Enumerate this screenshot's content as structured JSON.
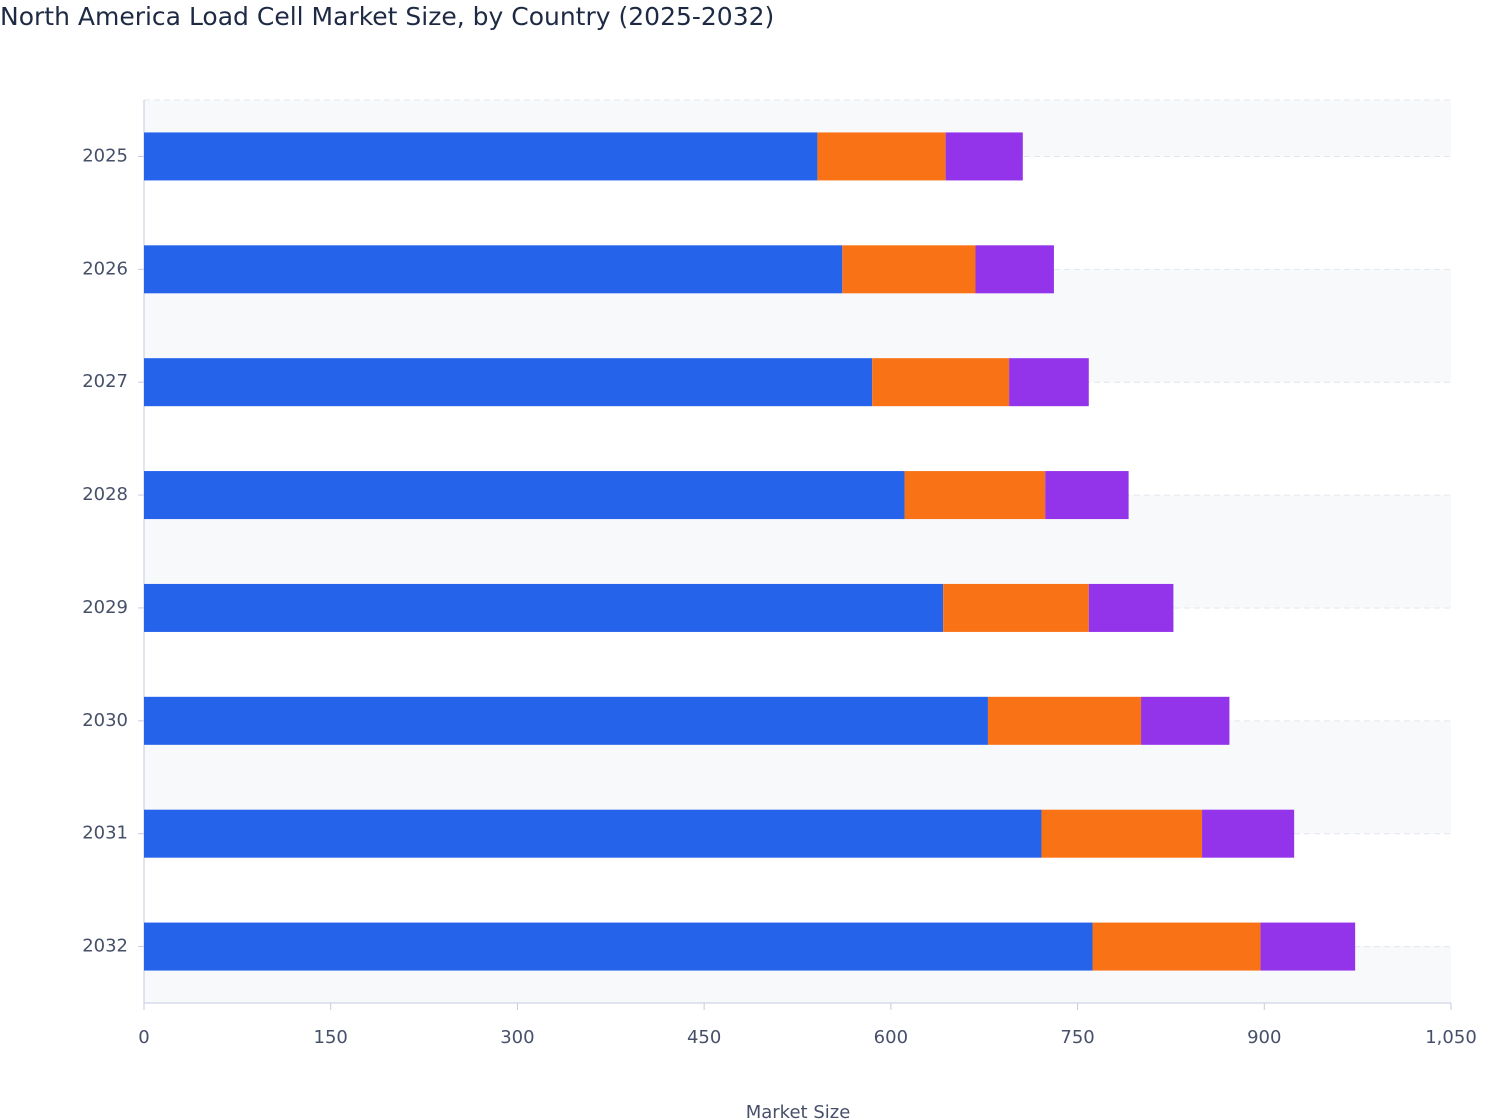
{
  "chart_data": {
    "type": "stacked-barh",
    "title": "North America Load Cell Market Size, by Country (2025-2032)",
    "x_label": "Market Size",
    "categories": [
      "2025",
      "2026",
      "2027",
      "2028",
      "2029",
      "2030",
      "2031",
      "2032"
    ],
    "series": [
      {
        "color": "#2563eb",
        "values": [
          541,
          561,
          585,
          611,
          642,
          678,
          721,
          762
        ]
      },
      {
        "color": "#f97316",
        "values": [
          103,
          107,
          110,
          113,
          117,
          123,
          129,
          135
        ]
      },
      {
        "color": "#9333ea",
        "values": [
          62,
          63,
          64,
          67,
          68,
          71,
          74,
          76
        ]
      }
    ],
    "xlim": [
      0,
      1050
    ],
    "xticks": [
      0,
      150,
      300,
      450,
      600,
      750,
      900,
      {
        "value": 1050,
        "label": "1,050"
      }
    ],
    "grid": true
  }
}
